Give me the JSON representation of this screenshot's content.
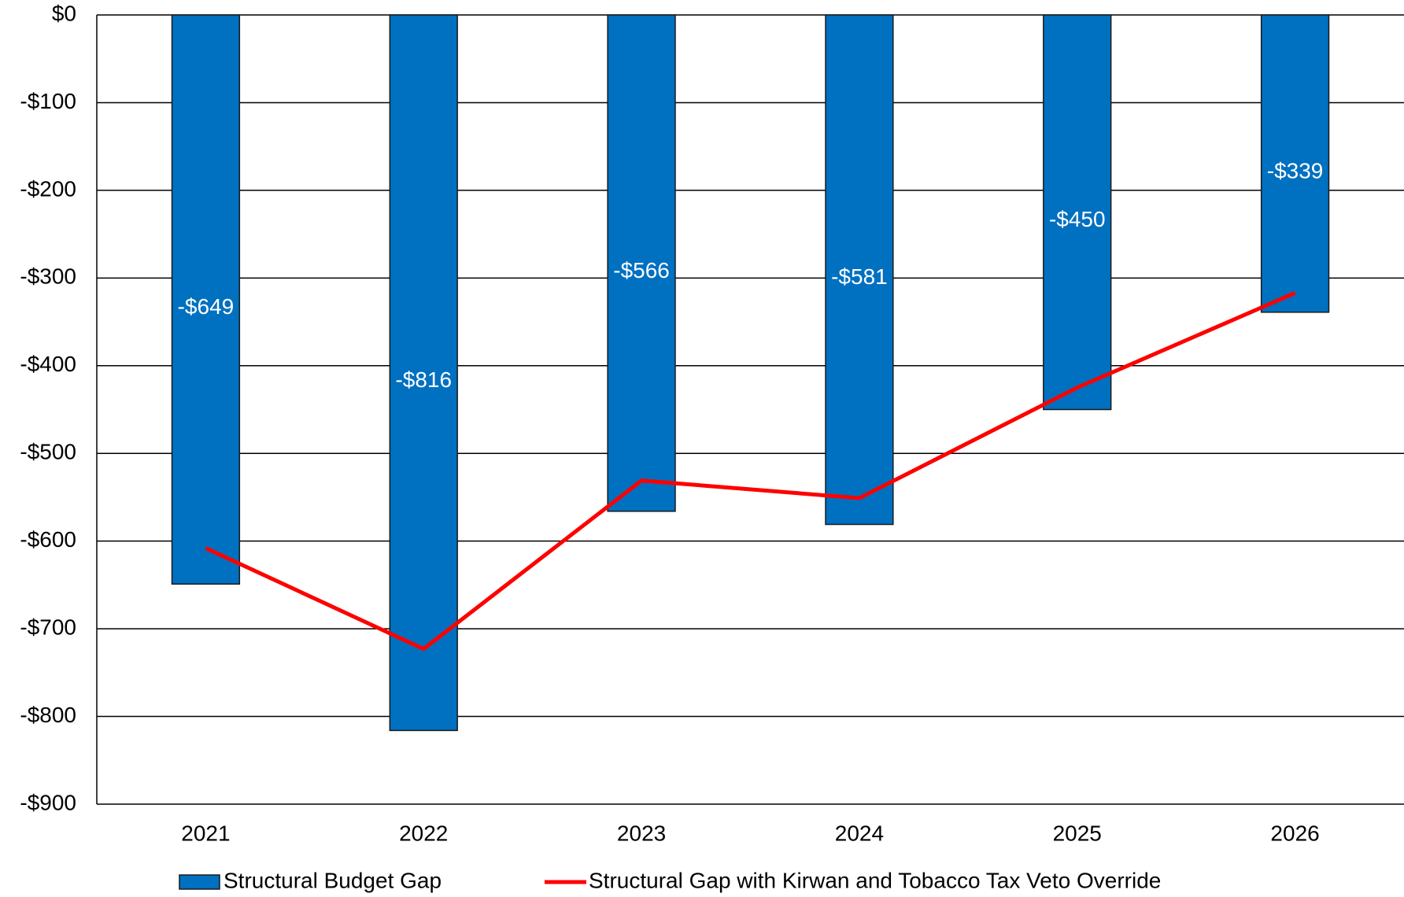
{
  "chart_data": {
    "type": "bar-line",
    "categories": [
      "2021",
      "2022",
      "2023",
      "2024",
      "2025",
      "2026"
    ],
    "series": [
      {
        "name": "Structural Budget Gap",
        "type": "bar",
        "color": "#0070c0",
        "values": [
          -649,
          -816,
          -566,
          -581,
          -450,
          -339
        ],
        "value_labels": [
          "-$649",
          "-$816",
          "-$566",
          "-$581",
          "-$450",
          "-$339"
        ]
      },
      {
        "name": "Structural Gap with Kirwan and Tobacco Tax Veto Override",
        "type": "line",
        "color": "#ff0000",
        "values": [
          -608,
          -723,
          -531,
          -551,
          -425,
          -317
        ]
      }
    ],
    "ylim": [
      -900,
      0
    ],
    "yticks": [
      {
        "value": 0,
        "label": "$0"
      },
      {
        "value": -100,
        "label": "-$100"
      },
      {
        "value": -200,
        "label": "-$200"
      },
      {
        "value": -300,
        "label": "-$300"
      },
      {
        "value": -400,
        "label": "-$400"
      },
      {
        "value": -500,
        "label": "-$500"
      },
      {
        "value": -600,
        "label": "-$600"
      },
      {
        "value": -700,
        "label": "-$700"
      },
      {
        "value": -800,
        "label": "-$800"
      },
      {
        "value": -900,
        "label": "-$900"
      }
    ],
    "grid": true
  }
}
